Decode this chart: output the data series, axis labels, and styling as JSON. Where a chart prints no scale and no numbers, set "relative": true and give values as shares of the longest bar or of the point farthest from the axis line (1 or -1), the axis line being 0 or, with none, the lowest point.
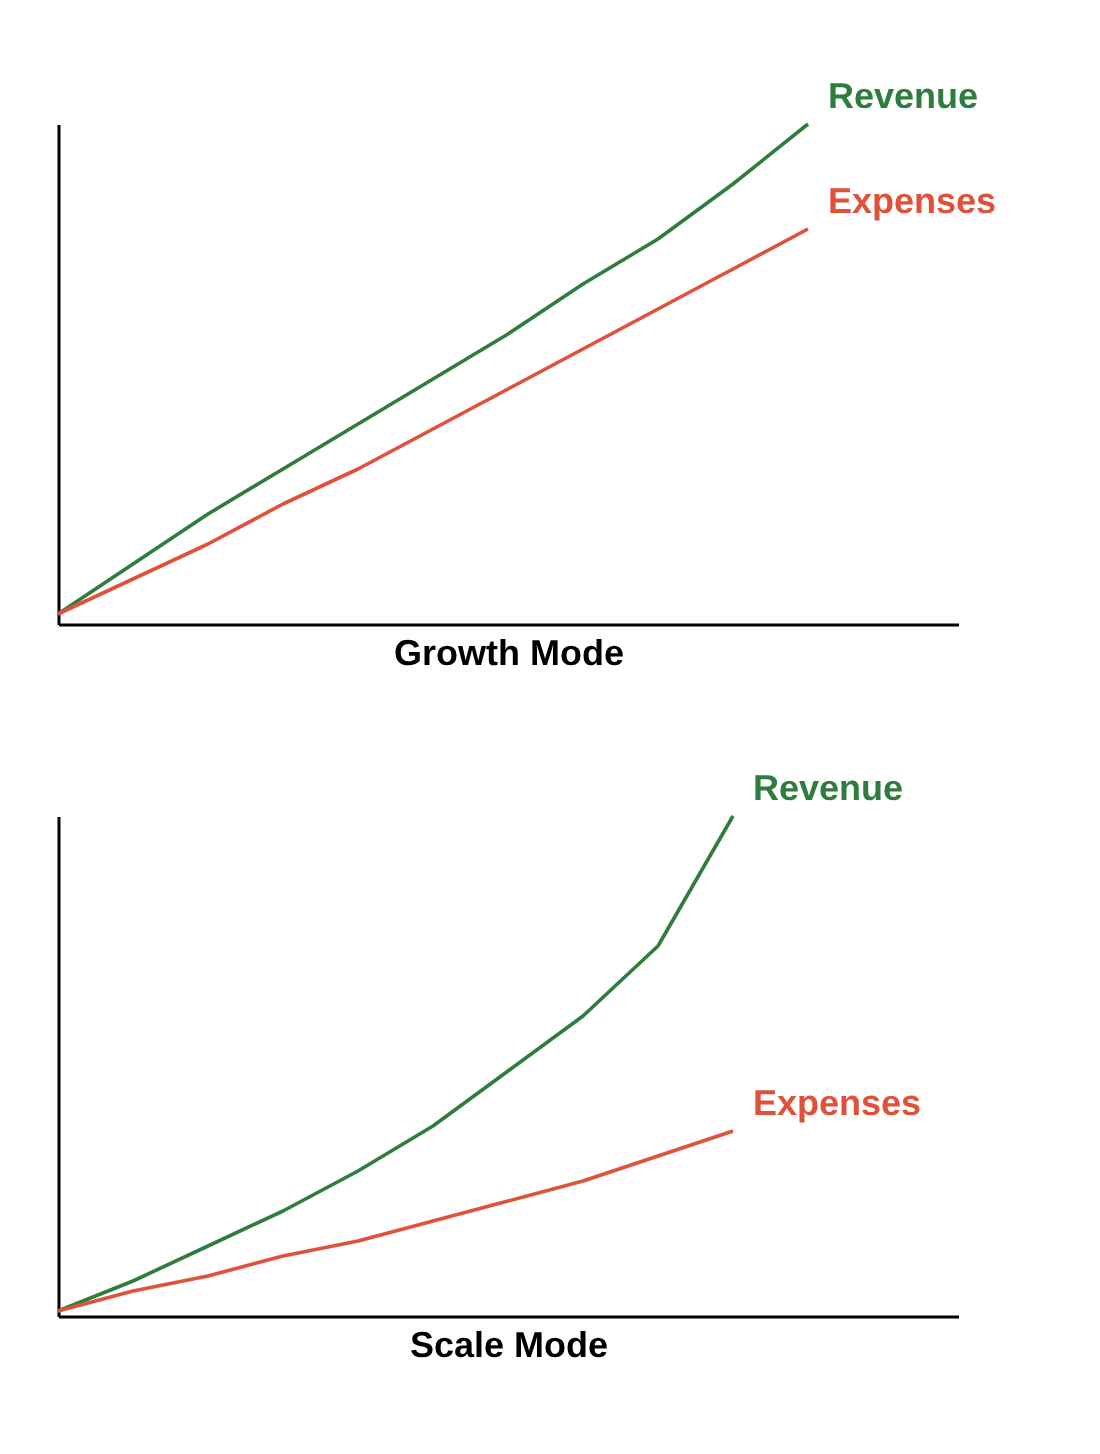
{
  "chart_data": [
    {
      "type": "line",
      "relative": true,
      "xlabel": "Growth Mode",
      "categories": [
        null,
        null,
        null,
        null,
        null,
        null,
        null,
        null,
        null,
        null,
        null,
        null,
        null
      ],
      "tick_labels": false,
      "grid": false,
      "legend": false,
      "marker": "none",
      "line_style": "solid",
      "series": [
        {
          "name": "Revenue",
          "color": "#2e7d3e",
          "values": [
            0.02,
            0.12,
            0.22,
            0.31,
            0.4,
            0.49,
            0.58,
            0.68,
            0.77,
            0.88,
            1.0,
            null,
            null
          ]
        },
        {
          "name": "Expenses",
          "color": "#e0513a",
          "values": [
            0.02,
            0.09,
            0.16,
            0.24,
            0.31,
            0.39,
            0.47,
            0.55,
            0.63,
            0.71,
            0.79,
            null,
            null
          ]
        }
      ]
    },
    {
      "type": "line",
      "relative": true,
      "xlabel": "Scale Mode",
      "categories": [
        null,
        null,
        null,
        null,
        null,
        null,
        null,
        null,
        null,
        null,
        null,
        null,
        null
      ],
      "tick_labels": false,
      "grid": false,
      "legend": false,
      "marker": "none",
      "line_style": "solid",
      "series": [
        {
          "name": "Revenue",
          "color": "#2e7d3e",
          "values": [
            0.01,
            0.07,
            0.14,
            0.21,
            0.29,
            0.38,
            0.49,
            0.6,
            0.74,
            1.0,
            null,
            null,
            null
          ]
        },
        {
          "name": "Expenses",
          "color": "#e0513a",
          "values": [
            0.01,
            0.05,
            0.08,
            0.12,
            0.15,
            0.19,
            0.23,
            0.27,
            0.32,
            0.37,
            null,
            null,
            null
          ]
        }
      ]
    }
  ]
}
